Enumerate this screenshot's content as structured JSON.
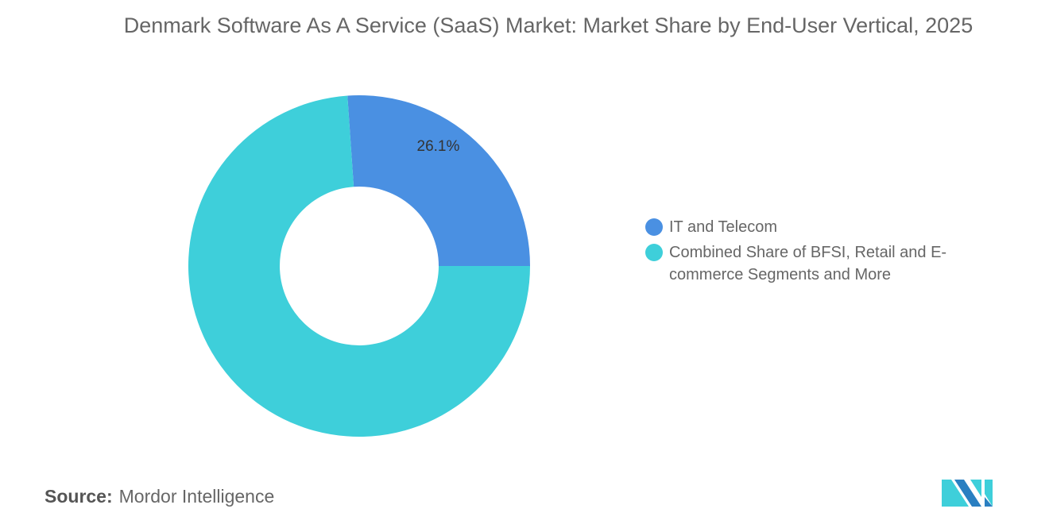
{
  "chart_data": {
    "type": "pie",
    "title": "Denmark Software As A Service (SaaS) Market: Market Share by End-User Vertical, 2025",
    "donut": true,
    "slices": [
      {
        "label": "IT and Telecom",
        "value": 26.1,
        "color": "#4a90e2",
        "data_label": "26.1%"
      },
      {
        "label": "Combined Share of BFSI, Retail and E-commerce Segments and More",
        "value": 73.9,
        "color": "#3ecfda",
        "data_label": ""
      }
    ],
    "legend_position": "right"
  },
  "source": {
    "label": "Source:",
    "value": "Mordor Intelligence"
  },
  "logo": {
    "text": "Mordor Intelligence",
    "colors": [
      "#2a7fc1",
      "#3ecfda"
    ]
  }
}
